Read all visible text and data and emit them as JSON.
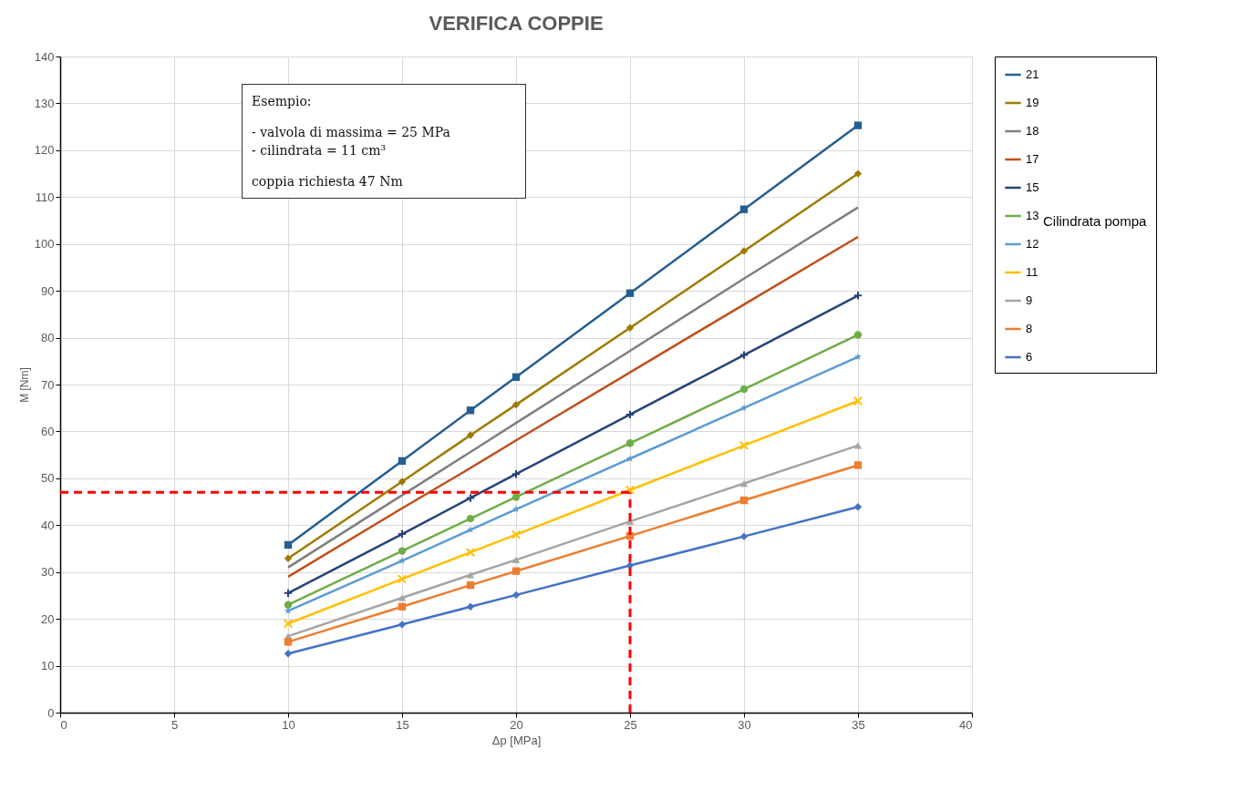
{
  "chart_data": {
    "type": "line",
    "title": "VERIFICA COPPIE",
    "xlabel": "Δp [MPa]",
    "ylabel": "M [Nm]",
    "legend_title": "Cilindrata pompa",
    "legend": "right",
    "grid": true,
    "x": [
      10,
      15,
      18,
      20,
      25,
      30,
      35
    ],
    "xlim": [
      0,
      40
    ],
    "xticks": [
      0,
      5,
      10,
      15,
      20,
      25,
      30,
      35,
      40
    ],
    "ylim": [
      0,
      140
    ],
    "yticks": [
      0,
      10,
      20,
      30,
      40,
      50,
      60,
      70,
      80,
      90,
      100,
      110,
      120,
      130,
      140
    ],
    "series": [
      {
        "name": "21",
        "color": "#255e91",
        "marker": "square",
        "values": [
          35.8,
          53.7,
          64.5,
          71.6,
          89.5,
          107.4,
          125.3
        ]
      },
      {
        "name": "19",
        "color": "#9e7b00",
        "marker": "diamond",
        "values": [
          32.9,
          49.3,
          59.2,
          65.7,
          82.1,
          98.5,
          115
        ]
      },
      {
        "name": "18",
        "color": "#7f7f7f",
        "marker": "none",
        "values": [
          31,
          46.4,
          55.6,
          61.8,
          77.2,
          92.6,
          107.8
        ]
      },
      {
        "name": "17",
        "color": "#c0501a",
        "marker": "none",
        "values": [
          29,
          43.6,
          52.2,
          58.1,
          72.6,
          87.1,
          101.5
        ]
      },
      {
        "name": "15",
        "color": "#264478",
        "marker": "plus",
        "values": [
          25.5,
          38.1,
          45.8,
          50.9,
          63.6,
          76.3,
          89
        ]
      },
      {
        "name": "13",
        "color": "#70ad47",
        "marker": "circle",
        "values": [
          23,
          34.5,
          41.4,
          46,
          57.5,
          69,
          80.6
        ]
      },
      {
        "name": "12",
        "color": "#5b9bd5",
        "marker": "star",
        "values": [
          21.7,
          32.4,
          39,
          43.4,
          54.2,
          65,
          75.9
        ]
      },
      {
        "name": "11",
        "color": "#ffc000",
        "marker": "cross",
        "values": [
          19,
          28.5,
          34.2,
          38,
          47.5,
          57,
          66.5
        ]
      },
      {
        "name": "9",
        "color": "#a5a5a5",
        "marker": "triangle",
        "values": [
          16.3,
          24.5,
          29.4,
          32.6,
          40.8,
          48.9,
          57
        ]
      },
      {
        "name": "8",
        "color": "#ed7d31",
        "marker": "square",
        "values": [
          15.1,
          22.6,
          27.2,
          30.2,
          37.7,
          45.3,
          52.8
        ]
      },
      {
        "name": "6",
        "color": "#4472c4",
        "marker": "diamond",
        "values": [
          12.6,
          18.8,
          22.6,
          25.1,
          31.4,
          37.6,
          43.9
        ]
      }
    ],
    "ref_lines": [
      {
        "axis": "x",
        "value": 25,
        "color": "#ff0000",
        "line_style": "dashed"
      },
      {
        "axis": "y",
        "value": 47,
        "color": "#ff0000",
        "line_style": "dashed"
      }
    ],
    "annotations": [
      "Esempio:",
      "- valvola di massima = 25 MPa",
      "- cilindrata = 11 cm³",
      "coppia richiesta 47 Nm"
    ]
  }
}
